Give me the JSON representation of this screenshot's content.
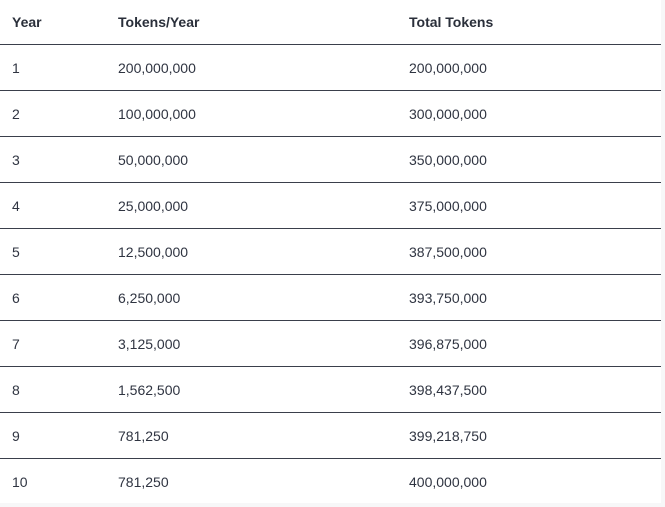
{
  "table": {
    "headers": [
      "Year",
      "Tokens/Year",
      "Total Tokens"
    ],
    "rows": [
      {
        "year": "1",
        "tokens_per_year": "200,000,000",
        "total_tokens": "200,000,000"
      },
      {
        "year": "2",
        "tokens_per_year": "100,000,000",
        "total_tokens": "300,000,000"
      },
      {
        "year": "3",
        "tokens_per_year": "50,000,000",
        "total_tokens": "350,000,000"
      },
      {
        "year": "4",
        "tokens_per_year": "25,000,000",
        "total_tokens": "375,000,000"
      },
      {
        "year": "5",
        "tokens_per_year": "12,500,000",
        "total_tokens": "387,500,000"
      },
      {
        "year": "6",
        "tokens_per_year": "6,250,000",
        "total_tokens": "393,750,000"
      },
      {
        "year": "7",
        "tokens_per_year": "3,125,000",
        "total_tokens": "396,875,000"
      },
      {
        "year": "8",
        "tokens_per_year": "1,562,500",
        "total_tokens": "398,437,500"
      },
      {
        "year": "9",
        "tokens_per_year": "781,250",
        "total_tokens": "399,218,750"
      },
      {
        "year": "10",
        "tokens_per_year": "781,250",
        "total_tokens": "400,000,000"
      }
    ]
  },
  "colors": {
    "text": "#2f3441",
    "rule": "#3a3f4b",
    "background": "#ffffff"
  }
}
